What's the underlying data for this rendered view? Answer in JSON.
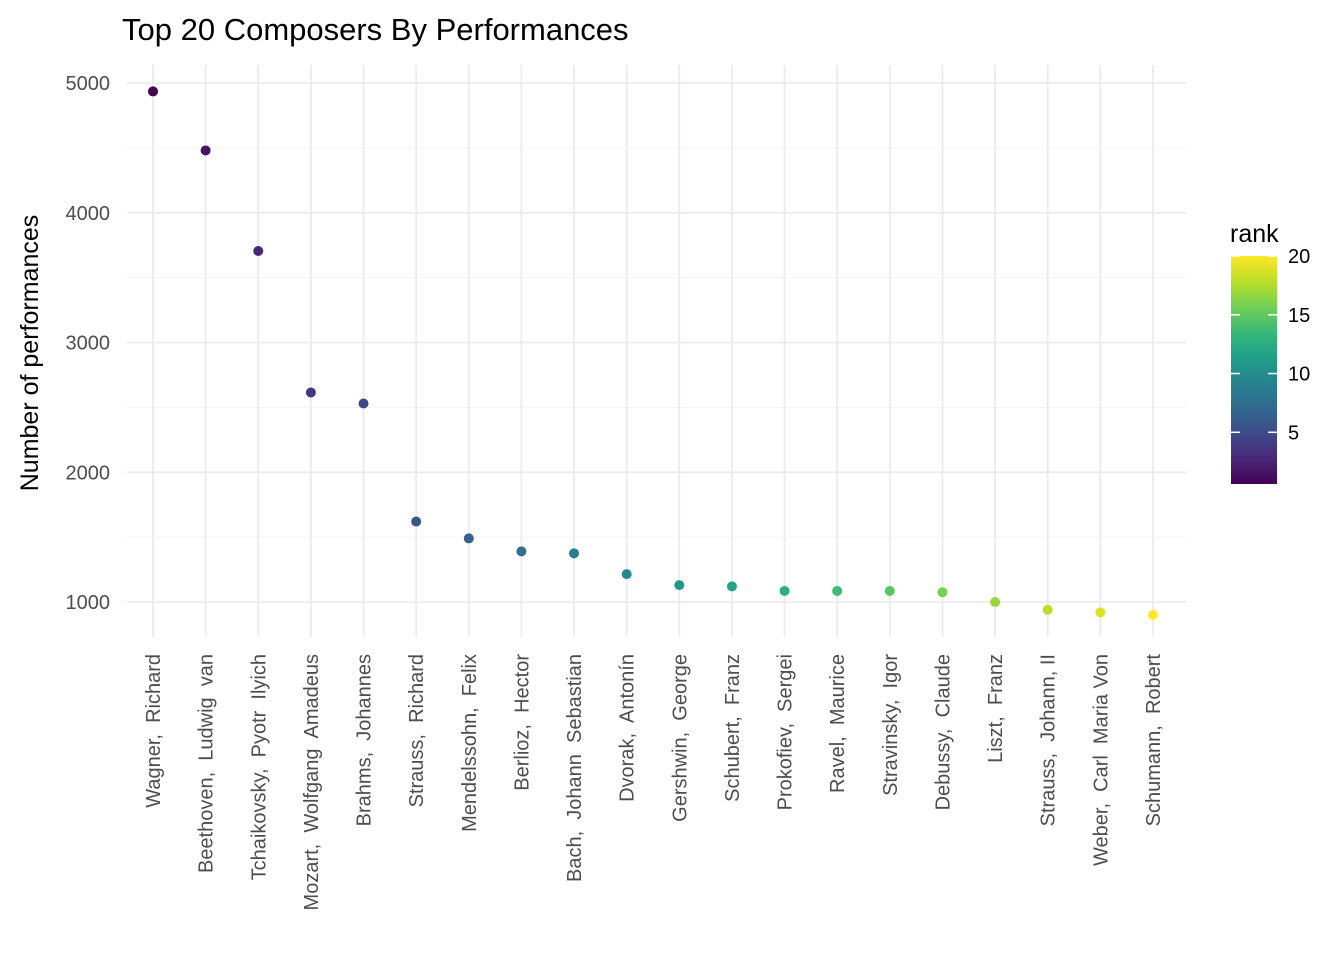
{
  "chart_data": {
    "type": "scatter",
    "title": "Top 20 Composers By Performances",
    "xlabel": "",
    "ylabel": "Number of performances",
    "ylim": [
      720,
      5120
    ],
    "y_ticks": [
      1000,
      2000,
      3000,
      4000,
      5000
    ],
    "y_tick_labels": [
      "1000",
      "2000",
      "3000",
      "4000",
      "5000"
    ],
    "grid": true,
    "legend": {
      "title": "rank",
      "placement": "right",
      "range": [
        1,
        20
      ],
      "ticks": [
        5,
        10,
        15,
        20
      ],
      "tick_labels": [
        "5",
        "10",
        "15",
        "20"
      ],
      "colormap": "viridis"
    },
    "categories": [
      "Wagner,  Richard",
      "Beethoven,  Ludwig  van",
      "Tchaikovsky,  Pyotr  Ilyich",
      "Mozart,  Wolfgang  Amadeus",
      "Brahms,  Johannes",
      "Strauss,  Richard",
      "Mendelssohn,  Felix",
      "Berlioz,  Hector",
      "Bach,  Johann  Sebastian",
      "Dvorak,  Antonín",
      "Gershwin,  George",
      "Schubert,  Franz",
      "Prokofiev,  Sergei",
      "Ravel,  Maurice",
      "Stravinsky,  Igor",
      "Debussy,  Claude",
      "Liszt,  Franz",
      "Strauss,  Johann, II",
      "Weber,  Carl  Maria Von",
      "Schumann,  Robert"
    ],
    "values": [
      4935,
      4480,
      3705,
      2615,
      2530,
      1620,
      1490,
      1390,
      1375,
      1215,
      1130,
      1120,
      1085,
      1085,
      1085,
      1075,
      1000,
      940,
      920,
      900
    ],
    "rank": [
      1,
      2,
      3,
      4,
      5,
      6,
      7,
      8,
      9,
      10,
      11,
      12,
      13,
      14,
      15,
      16,
      17,
      18,
      19,
      20
    ]
  }
}
